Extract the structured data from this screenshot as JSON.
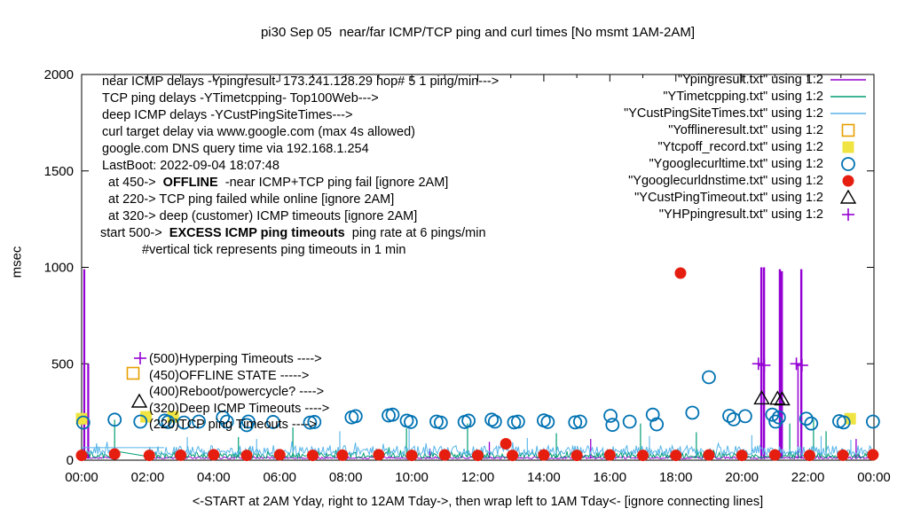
{
  "chart_data": {
    "type": "line+scatter",
    "title": "pi30 Sep 05  near/far ICMP/TCP ping and curl times [No msmt 1AM-2AM]",
    "ylabel": "msec",
    "xlabel_caption": "<-START at 2AM Yday, right to 12AM Tday->, then wrap left to 1AM Tday<- [ignore connecting lines]",
    "x_ticks": [
      "00:00",
      "02:00",
      "04:00",
      "06:00",
      "08:00",
      "10:00",
      "12:00",
      "14:00",
      "16:00",
      "18:00",
      "20:00",
      "22:00",
      "00:00"
    ],
    "x_tick_hours": [
      0,
      2,
      4,
      6,
      8,
      10,
      12,
      14,
      16,
      18,
      20,
      22,
      24
    ],
    "minor_tick_every_hours": 1,
    "y_ticks": [
      0,
      500,
      1000,
      1500,
      2000
    ],
    "ylim": [
      0,
      2000
    ],
    "xlim_hours": [
      0,
      24
    ],
    "measurement_gap_hours": [
      1.02,
      2.02
    ],
    "grid": false,
    "legend_position": "top-right",
    "legend": [
      {
        "label": "\"Ypingresult.txt\" using 1:2",
        "marker": "line",
        "color": "#9400d3"
      },
      {
        "label": "\"YTimetcpping.txt\" using 1:2",
        "marker": "line",
        "color": "#009e73"
      },
      {
        "label": "\"YCustPingSiteTimes.txt\" using 1:2",
        "marker": "line",
        "color": "#56b4e9"
      },
      {
        "label": "\"Yofflineresult.txt\" using 1:2",
        "marker": "open-square",
        "color": "#e69f00"
      },
      {
        "label": "\"Ytcpoff_record.txt\" using 1:2",
        "marker": "filled-square",
        "color": "#f0e442"
      },
      {
        "label": "\"Ygooglecurltime.txt\" using 1:2",
        "marker": "open-circle",
        "color": "#0072b2"
      },
      {
        "label": "\"Ygooglecurldnstime.txt\" using 1:2",
        "marker": "filled-circle",
        "color": "#e51e10"
      },
      {
        "label": "\"YCustPingTimeout.txt\" using 1:2",
        "marker": "open-triangle",
        "color": "#000000"
      },
      {
        "label": "\"YHPpingresult.txt\" using 1:2",
        "marker": "plus",
        "color": "#9400d3"
      }
    ],
    "lines": [
      {
        "name": "near_icmp_ping",
        "color": "#9400d3",
        "width": 1,
        "baseline": {
          "base": 8,
          "amp": 11
        },
        "spikes": [
          [
            0.08,
            990,
            2.2
          ],
          [
            0.2,
            500,
            2.2
          ],
          [
            10.55,
            60,
            1.3
          ],
          [
            12.35,
            95,
            1.3
          ],
          [
            15.42,
            110,
            1.3
          ],
          [
            20.59,
            1000,
            2.4
          ],
          [
            20.67,
            1000,
            2.4
          ],
          [
            21.15,
            990,
            2.4
          ],
          [
            21.21,
            980,
            2.4
          ],
          [
            21.7,
            500,
            1.5
          ],
          [
            21.8,
            990,
            2.4
          ],
          [
            23.46,
            110,
            1.3
          ]
        ],
        "segments": []
      },
      {
        "name": "tcp_ping",
        "color": "#009e73",
        "width": 1,
        "baseline": {
          "base": 12,
          "amp": 30
        },
        "spikes": [
          [
            1.0,
            210,
            1.2
          ],
          [
            4.75,
            120,
            1.2
          ],
          [
            6.4,
            170,
            1.2
          ],
          [
            9.84,
            165,
            1.2
          ],
          [
            11.69,
            190,
            1.2
          ],
          [
            14.38,
            140,
            1.2
          ],
          [
            16.93,
            190,
            1.2
          ],
          [
            18.62,
            145,
            1.2
          ],
          [
            21.45,
            190,
            1.2
          ],
          [
            22.17,
            210,
            1.2
          ],
          [
            22.55,
            150,
            1.2
          ]
        ],
        "segments": [
          [
            [
              1.0,
              48
            ],
            [
              2.05,
              18
            ]
          ]
        ]
      },
      {
        "name": "deep_icmp_custsites",
        "color": "#56b4e9",
        "width": 1,
        "baseline": {
          "base": 28,
          "amp": 48
        },
        "spikes": [
          [
            3.2,
            120,
            1.1
          ],
          [
            5.3,
            110,
            1.1
          ],
          [
            7.82,
            150,
            1.1
          ],
          [
            9.92,
            160,
            1.1
          ],
          [
            13.5,
            115,
            1.1
          ],
          [
            17.2,
            125,
            1.1
          ],
          [
            20.3,
            130,
            1.1
          ],
          [
            22.4,
            125,
            1.1
          ],
          [
            23.3,
            105,
            1.1
          ]
        ],
        "segments": [
          [
            [
              0.0,
              65
            ],
            [
              2.5,
              65
            ]
          ]
        ]
      }
    ],
    "points": [
      {
        "name": "offline_result",
        "marker": "open-square",
        "color": "#e69f00",
        "data": []
      },
      {
        "name": "tcpoff_record",
        "marker": "filled-square",
        "color": "#f0e442",
        "data": [
          [
            0.0,
            215
          ],
          [
            1.95,
            225
          ],
          [
            2.77,
            225
          ],
          [
            23.28,
            215
          ]
        ]
      },
      {
        "name": "google_curl_time",
        "marker": "open-circle",
        "color": "#0072b2",
        "data": [
          [
            0.05,
            195
          ],
          [
            1.0,
            210
          ],
          [
            1.78,
            200
          ],
          [
            2.52,
            205
          ],
          [
            2.62,
            198
          ],
          [
            3.1,
            195
          ],
          [
            3.55,
            200
          ],
          [
            4.28,
            222
          ],
          [
            4.4,
            200
          ],
          [
            5.0,
            182
          ],
          [
            5.05,
            200
          ],
          [
            5.8,
            198
          ],
          [
            6.92,
            195
          ],
          [
            7.05,
            198
          ],
          [
            8.18,
            222
          ],
          [
            8.3,
            228
          ],
          [
            9.3,
            232
          ],
          [
            9.42,
            236
          ],
          [
            9.85,
            205
          ],
          [
            9.97,
            198
          ],
          [
            10.75,
            200
          ],
          [
            10.88,
            195
          ],
          [
            11.6,
            198
          ],
          [
            11.72,
            205
          ],
          [
            12.42,
            210
          ],
          [
            12.52,
            200
          ],
          [
            13.1,
            196
          ],
          [
            13.22,
            200
          ],
          [
            14.0,
            206
          ],
          [
            14.12,
            198
          ],
          [
            14.95,
            196
          ],
          [
            15.1,
            200
          ],
          [
            16.02,
            230
          ],
          [
            16.08,
            183
          ],
          [
            16.6,
            200
          ],
          [
            17.3,
            236
          ],
          [
            17.42,
            186
          ],
          [
            18.5,
            246
          ],
          [
            19.0,
            430
          ],
          [
            19.62,
            230
          ],
          [
            19.75,
            212
          ],
          [
            20.1,
            228
          ],
          [
            20.92,
            236
          ],
          [
            21.02,
            200
          ],
          [
            21.12,
            222
          ],
          [
            21.95,
            215
          ],
          [
            22.1,
            190
          ],
          [
            22.95,
            202
          ],
          [
            23.08,
            196
          ],
          [
            23.97,
            200
          ]
        ]
      },
      {
        "name": "google_curl_dns_time",
        "marker": "filled-circle",
        "color": "#e51e10",
        "data": [
          [
            0.0,
            25
          ],
          [
            1.0,
            32
          ],
          [
            2.05,
            25
          ],
          [
            3.0,
            26
          ],
          [
            4.0,
            28
          ],
          [
            5.0,
            25
          ],
          [
            6.0,
            28
          ],
          [
            7.0,
            25
          ],
          [
            7.9,
            26
          ],
          [
            9.0,
            28
          ],
          [
            10.0,
            25
          ],
          [
            11.0,
            27
          ],
          [
            12.0,
            25
          ],
          [
            12.85,
            85
          ],
          [
            13.05,
            25
          ],
          [
            14.0,
            27
          ],
          [
            15.0,
            25
          ],
          [
            16.0,
            27
          ],
          [
            17.0,
            25
          ],
          [
            18.0,
            25
          ],
          [
            18.14,
            970
          ],
          [
            19.0,
            27
          ],
          [
            20.0,
            25
          ],
          [
            21.0,
            27
          ],
          [
            22.05,
            25
          ],
          [
            23.06,
            26
          ],
          [
            23.97,
            28
          ]
        ]
      },
      {
        "name": "cust_ping_timeout",
        "marker": "open-triangle",
        "color": "#000000",
        "data": [
          [
            20.6,
            320
          ],
          [
            21.08,
            318
          ],
          [
            21.22,
            315
          ]
        ]
      },
      {
        "name": "hp_ping_result",
        "marker": "plus",
        "color": "#9400d3",
        "data": [
          [
            20.5,
            500
          ],
          [
            20.68,
            492
          ],
          [
            21.65,
            500
          ],
          [
            21.82,
            492
          ]
        ]
      }
    ],
    "corner_annotations": [
      {
        "indent": 2,
        "pre": "near ICMP delays -Ypingresult- 173.241.128.29 hop# 5 1 ping/min--->",
        "bold": "",
        "post": ""
      },
      {
        "indent": 2,
        "pre": "TCP ping delays -YTimetcpping- Top100Web--->",
        "bold": "",
        "post": ""
      },
      {
        "indent": 2,
        "pre": "deep ICMP delays -YCustPingSiteTimes--->",
        "bold": "",
        "post": ""
      },
      {
        "indent": 2,
        "pre": "curl target delay via www.google.com (max 4s allowed)",
        "bold": "",
        "post": ""
      },
      {
        "indent": 2,
        "pre": "google.com DNS query time via 192.168.1.254",
        "bold": "",
        "post": ""
      },
      {
        "indent": 2,
        "pre": "LastBoot: 2022-09-04 18:07:48",
        "bold": "",
        "post": ""
      },
      {
        "indent": 9,
        "pre": "at 450->  ",
        "bold": "OFFLINE",
        "post": "  -near ICMP+TCP ping fail [ignore 2AM]"
      },
      {
        "indent": 9,
        "pre": "at 220-> TCP ping failed while online [ignore 2AM]",
        "bold": "",
        "post": ""
      },
      {
        "indent": 9,
        "pre": "at 320-> deep (customer) ICMP timeouts [ignore 2AM]",
        "bold": "",
        "post": ""
      },
      {
        "indent": 0,
        "pre": "start 500->  ",
        "bold": "EXCESS ICMP ping timeouts",
        "post": "  ping rate at 6 pings/min"
      },
      {
        "indent": 47,
        "pre": "#vertical tick represents ping timeouts in 1 min",
        "bold": "",
        "post": ""
      }
    ],
    "level_annotations": [
      {
        "marker": "plus",
        "color": "#9400d3",
        "text": "(500)Hyperping Timeouts ---->"
      },
      {
        "marker": "open-square",
        "color": "#e69f00",
        "text": "(450)OFFLINE STATE ----->"
      },
      {
        "marker": "none",
        "color": "#000000",
        "text": "(400)Reboot/powercycle? ---->"
      },
      {
        "marker": "open-triangle",
        "color": "#000000",
        "text": "(320)Deep ICMP Timeouts ---->"
      },
      {
        "marker": "filled-square",
        "color": "#f0e442",
        "text": "(220)TCP ping Timeouts ---->"
      }
    ]
  }
}
